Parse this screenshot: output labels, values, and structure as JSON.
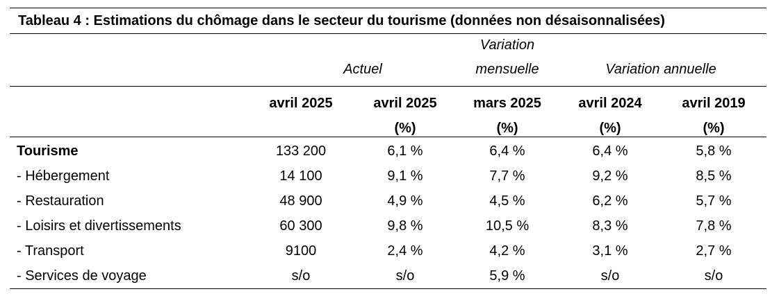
{
  "title": "Tableau 4 : Estimations du chômage dans le secteur du tourisme (données non désaisonnalisées)",
  "groups": {
    "actuel": "Actuel",
    "mensuelle_line1": "Variation",
    "mensuelle_line2": "mensuelle",
    "annuelle": "Variation annuelle"
  },
  "headers": [
    {
      "line1": "avril 2025",
      "line2": ""
    },
    {
      "line1": "avril 2025",
      "line2": "(%)"
    },
    {
      "line1": "mars 2025",
      "line2": "(%)"
    },
    {
      "line1": "avril 2024",
      "line2": "(%)"
    },
    {
      "line1": "avril 2019",
      "line2": "(%)"
    }
  ],
  "rows": [
    {
      "label": "Tourisme",
      "cells": [
        "133 200",
        "6,1 %",
        "6,4 %",
        "6,4 %",
        "5,8 %"
      ]
    },
    {
      "label": "- Hébergement",
      "cells": [
        "14 100",
        "9,1 %",
        "7,7 %",
        "9,2 %",
        "8,5 %"
      ]
    },
    {
      "label": "- Restauration",
      "cells": [
        "48 900",
        "4,9 %",
        "4,5 %",
        "6,2 %",
        "5,7 %"
      ]
    },
    {
      "label": "- Loisirs et divertissements",
      "cells": [
        "60 300",
        "9,8 %",
        "10,5 %",
        "8,3 %",
        "7,8 %"
      ]
    },
    {
      "label": "- Transport",
      "cells": [
        "9100",
        "2,4 %",
        "4,2 %",
        "3,1 %",
        "2,7 %"
      ]
    },
    {
      "label": "- Services de voyage",
      "cells": [
        "s/o",
        "s/o",
        "5,9 %",
        "s/o",
        "s/o"
      ]
    }
  ]
}
